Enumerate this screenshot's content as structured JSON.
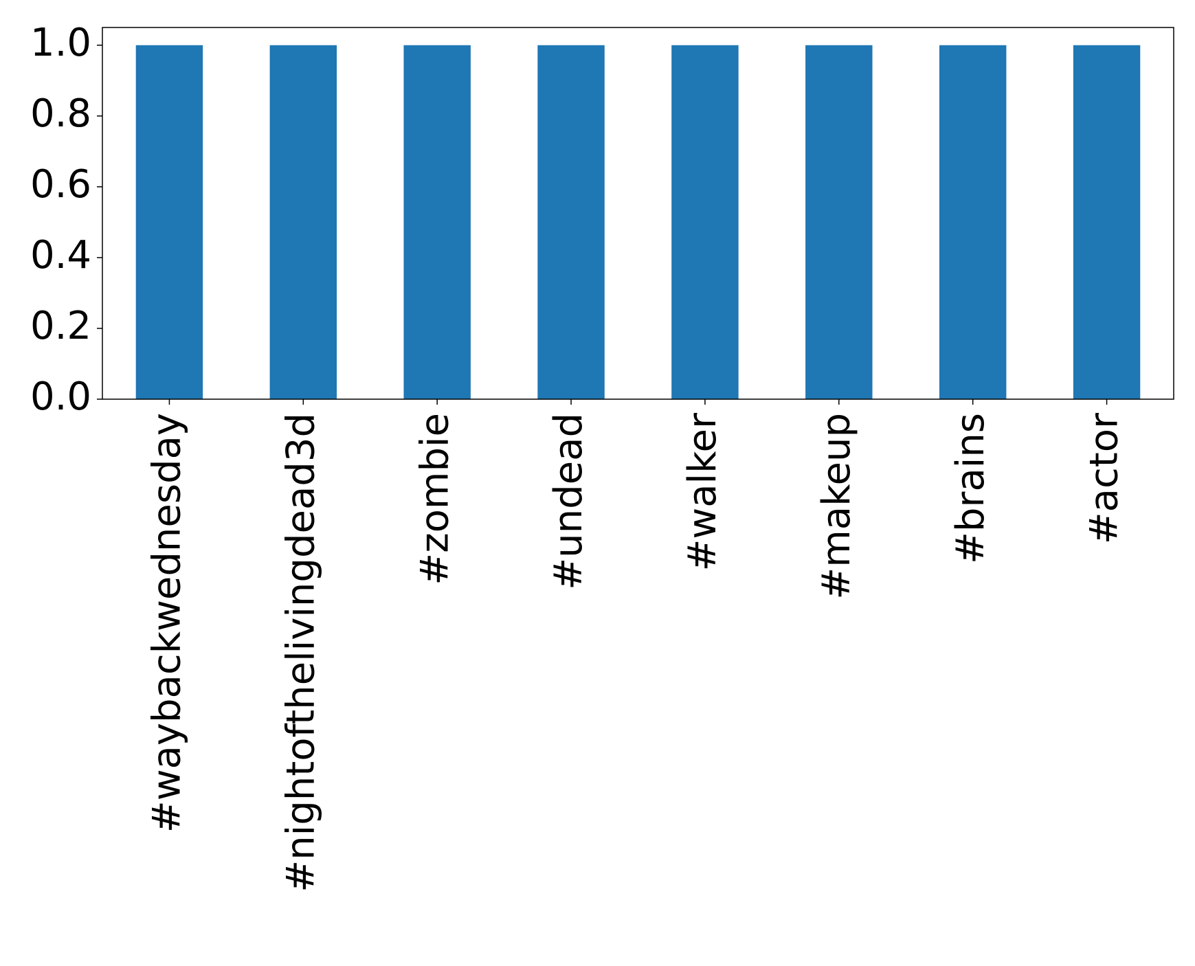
{
  "chart_data": {
    "type": "bar",
    "categories": [
      "#waybackwednesday",
      "#nightofthelivingdead3d",
      "#zombie",
      "#undead",
      "#walker",
      "#makeup",
      "#brains",
      "#actor"
    ],
    "values": [
      1,
      1,
      1,
      1,
      1,
      1,
      1,
      1
    ],
    "color": "#1f77b4",
    "ylim": [
      0,
      1.05
    ],
    "yticks": [
      {
        "value": 0,
        "label": "0.0"
      },
      0.2,
      0.4,
      0.6,
      0.8,
      {
        "value": 1,
        "label": "1.0"
      }
    ],
    "grid": false
  }
}
